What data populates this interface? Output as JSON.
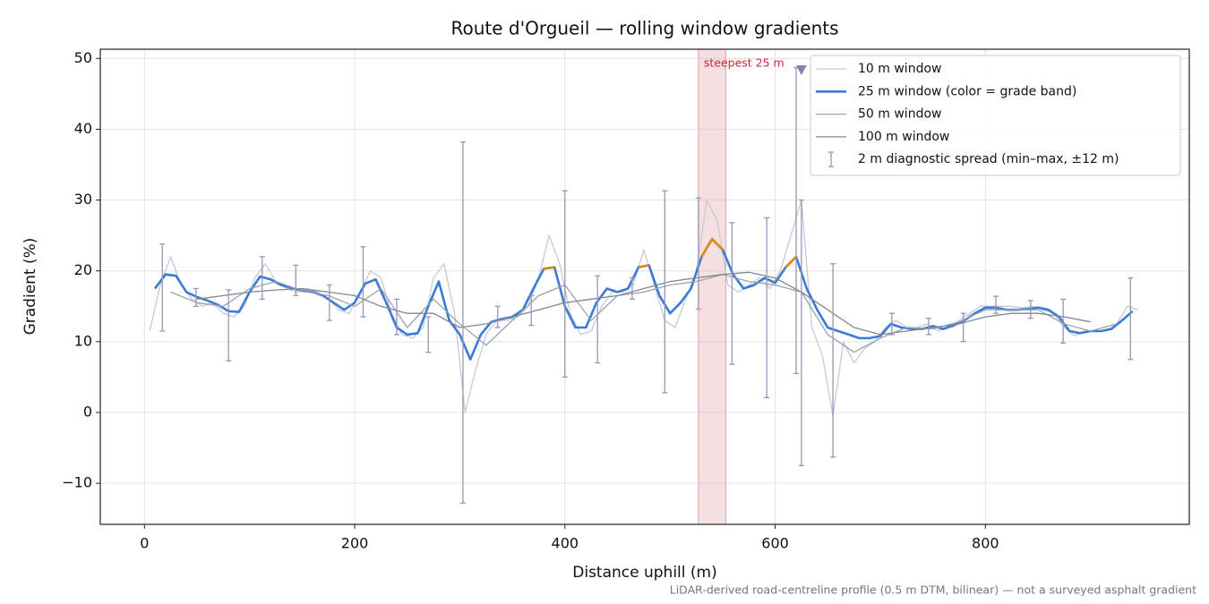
{
  "chart_data": {
    "type": "line",
    "title": "Route d'Orgueil — rolling window gradients",
    "x_label": "Distance uphill (m)",
    "y_label": "Gradient (%)",
    "footnote": "LiDAR-derived road-centreline profile (0.5 m DTM, bilinear) — not a surveyed asphalt gradient",
    "xlim": [
      -42,
      994
    ],
    "ylim": [
      -15.8,
      51.3
    ],
    "xticks": [
      0,
      200,
      400,
      600,
      800
    ],
    "yticks": [
      {
        "value": -10,
        "label": "−10"
      },
      0,
      10,
      20,
      30,
      40,
      50
    ],
    "grid": true,
    "legend": "upper right",
    "series": [
      {
        "name": "10 m window",
        "color": "#c5cad3",
        "width": 1.3,
        "x": [
          5,
          15,
          25,
          35,
          45,
          55,
          65,
          75,
          85,
          95,
          105,
          115,
          125,
          135,
          145,
          155,
          165,
          175,
          185,
          195,
          205,
          215,
          225,
          235,
          245,
          255,
          265,
          275,
          285,
          295,
          305,
          315,
          325,
          335,
          345,
          355,
          365,
          375,
          385,
          395,
          405,
          415,
          425,
          435,
          445,
          455,
          465,
          475,
          485,
          495,
          505,
          515,
          525,
          535,
          545,
          555,
          565,
          575,
          585,
          595,
          605,
          615,
          625,
          635,
          645,
          655,
          665,
          675,
          685,
          695,
          705,
          715,
          725,
          735,
          745,
          755,
          765,
          775,
          785,
          795,
          805,
          815,
          825,
          835,
          845,
          855,
          865,
          875,
          885,
          895,
          905,
          915,
          925,
          935,
          945
        ],
        "values": [
          11.5,
          18,
          22,
          18,
          16,
          15,
          15.5,
          14,
          13.5,
          15,
          19,
          21,
          18.5,
          17.5,
          17,
          17.5,
          17,
          16,
          14.5,
          14,
          17,
          20,
          19,
          14,
          11,
          10.5,
          12,
          19,
          21,
          14,
          0,
          6,
          11,
          13,
          13,
          13.5,
          15,
          19,
          25,
          21,
          14,
          11,
          11.5,
          15,
          17,
          17,
          18,
          23,
          18,
          13,
          12,
          16,
          20,
          30,
          27,
          18,
          17,
          18,
          19,
          17.5,
          20,
          25,
          30,
          12,
          8,
          -0.5,
          10,
          7,
          9,
          10,
          12,
          13,
          12,
          12,
          12.5,
          11.5,
          12,
          13,
          14,
          15,
          15,
          15,
          15,
          14.8,
          15,
          14.5,
          14,
          12,
          10.8,
          11.5,
          11.5,
          11.5,
          12.5,
          15,
          14.5
        ]
      },
      {
        "name": "25 m window (color = grade band)",
        "color": "#3a7bd5",
        "width": 2.6,
        "band_min": 20,
        "band_color": "#de8a0c",
        "x": [
          10,
          20,
          30,
          40,
          50,
          60,
          70,
          80,
          90,
          100,
          110,
          120,
          130,
          140,
          150,
          160,
          170,
          180,
          190,
          200,
          210,
          220,
          230,
          240,
          250,
          260,
          270,
          280,
          290,
          300,
          310,
          320,
          330,
          340,
          350,
          360,
          370,
          380,
          390,
          400,
          410,
          420,
          430,
          440,
          450,
          460,
          470,
          480,
          490,
          500,
          510,
          520,
          530,
          540,
          550,
          560,
          570,
          580,
          590,
          600,
          610,
          620,
          630,
          640,
          650,
          660,
          670,
          680,
          690,
          700,
          710,
          720,
          730,
          740,
          750,
          760,
          770,
          780,
          790,
          800,
          810,
          820,
          830,
          840,
          850,
          860,
          870,
          880,
          890,
          900,
          910,
          920,
          930,
          940
        ],
        "values": [
          17.5,
          19.5,
          19.3,
          17,
          16.3,
          15.8,
          15.2,
          14.3,
          14.2,
          17,
          19.2,
          18.8,
          18,
          17.6,
          17.2,
          17,
          16.5,
          15.5,
          14.5,
          15.5,
          18.2,
          18.8,
          15.5,
          12,
          11,
          11.2,
          15,
          18.5,
          13,
          11,
          7.5,
          11,
          12.8,
          13.2,
          13.5,
          14.5,
          17.5,
          20.3,
          20.5,
          15,
          12,
          12,
          15.5,
          17.5,
          17,
          17.5,
          20.5,
          20.8,
          16.5,
          14,
          15.5,
          17.5,
          22,
          24.5,
          23,
          19.5,
          17.5,
          18,
          19,
          18.3,
          20.5,
          22,
          17.5,
          14.5,
          12,
          11.5,
          11,
          10.5,
          10.5,
          10.8,
          12.5,
          12,
          11.8,
          11.8,
          12.2,
          11.8,
          12.3,
          13,
          14,
          14.8,
          14.8,
          14.5,
          14.5,
          14.6,
          14.8,
          14.5,
          13.5,
          11.5,
          11.2,
          11.5,
          11.5,
          11.8,
          13,
          14.3
        ]
      },
      {
        "name": "50 m window",
        "color": "#9aa3b0",
        "width": 1.3,
        "x": [
          25,
          50,
          75,
          100,
          125,
          150,
          175,
          200,
          225,
          250,
          275,
          300,
          325,
          350,
          375,
          400,
          425,
          450,
          475,
          500,
          525,
          550,
          575,
          600,
          625,
          650,
          675,
          700,
          725,
          750,
          775,
          800,
          825,
          850,
          875,
          900,
          925
        ],
        "values": [
          17,
          15.5,
          15,
          17.5,
          18.5,
          17.2,
          16.5,
          15,
          17.5,
          12,
          16,
          12.5,
          9.5,
          13,
          16.5,
          18,
          13,
          16.5,
          17,
          18,
          18.5,
          19.5,
          18.5,
          18,
          17,
          11,
          8.5,
          10.5,
          12,
          11.8,
          12.8,
          14.5,
          14.5,
          14.5,
          12.5,
          11.5,
          12.5
        ]
      },
      {
        "name": "100 m window",
        "color": "#7f8691",
        "width": 1.3,
        "x": [
          50,
          75,
          100,
          125,
          150,
          175,
          200,
          225,
          250,
          275,
          300,
          325,
          350,
          375,
          400,
          425,
          450,
          475,
          500,
          525,
          550,
          575,
          600,
          625,
          650,
          675,
          700,
          725,
          750,
          775,
          800,
          825,
          850,
          875,
          900
        ],
        "values": [
          16,
          16.5,
          17,
          17.3,
          17.5,
          17,
          16.5,
          15,
          14,
          14,
          12,
          12.5,
          13.5,
          14.5,
          15.5,
          16,
          16.5,
          17.5,
          18.5,
          19,
          19.5,
          19.8,
          19,
          17,
          14.5,
          12,
          11,
          11.5,
          12,
          12.5,
          13.5,
          14,
          14,
          13.5,
          12.8
        ]
      }
    ],
    "spread": {
      "name": "2 m diagnostic spread (min–max, ±12 m)",
      "color": "#9a94b8",
      "x": [
        17,
        49,
        80,
        112,
        144,
        176,
        208,
        240,
        270,
        303,
        336,
        368,
        400,
        431,
        464,
        495,
        527,
        559,
        592,
        620,
        625,
        655,
        711,
        746,
        779,
        810,
        843,
        874,
        938
      ],
      "low": [
        11.5,
        15,
        7.3,
        16,
        16.5,
        13,
        13.5,
        11,
        8.5,
        -12.8,
        12,
        12.3,
        5,
        7,
        16,
        2.8,
        14.6,
        6.8,
        2.1,
        5.5,
        -7.5,
        -6.3,
        11,
        11,
        10,
        14,
        13.3,
        9.8,
        7.5
      ],
      "high": [
        23.8,
        17.5,
        17.3,
        22,
        20.8,
        18,
        23.4,
        16,
        13.5,
        38.2,
        15,
        16.5,
        31.3,
        19.3,
        19,
        31.3,
        30.3,
        26.8,
        27.5,
        48.7,
        30,
        21,
        14,
        13.3,
        14,
        16.4,
        15.8,
        16,
        19
      ]
    },
    "highlight": {
      "label": "steepest 25 m",
      "span": [
        527,
        553
      ],
      "color": "#e3a3aa",
      "text_color": "#c8283a"
    },
    "peak_marker": {
      "x": 625,
      "y": 48.4,
      "color": "#8a7fae"
    }
  }
}
